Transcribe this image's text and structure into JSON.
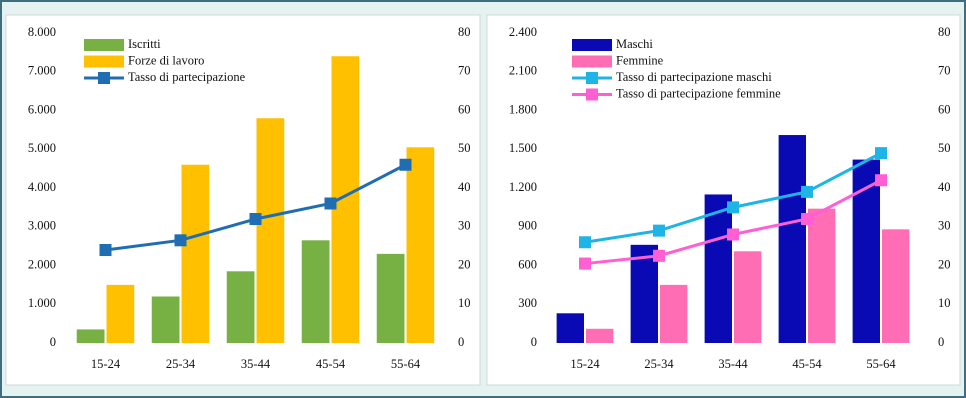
{
  "chart_data": [
    {
      "type": "bar",
      "categories": [
        "15-24",
        "25-34",
        "35-44",
        "45-54",
        "55-64"
      ],
      "ylim": [
        0,
        8000
      ],
      "yticks": [
        0,
        {
          "value": 1000,
          "label": "1.000"
        },
        {
          "value": 2000,
          "label": "2.000"
        },
        {
          "value": 3000,
          "label": "3.000"
        },
        {
          "value": 4000,
          "label": "4.000"
        },
        {
          "value": 5000,
          "label": "5.000"
        },
        {
          "value": 6000,
          "label": "6.000"
        },
        {
          "value": 7000,
          "label": "7.000"
        },
        {
          "value": 8000,
          "label": "8.000"
        }
      ],
      "y2lim": [
        0,
        80
      ],
      "y2ticks": [
        0,
        10,
        20,
        30,
        40,
        50,
        60,
        70,
        80
      ],
      "series": [
        {
          "name": "Iscritti",
          "color": "#77b043",
          "values": [
            350,
            1200,
            1850,
            2650,
            2300
          ]
        },
        {
          "name": "Forze di lavoro",
          "color": "#ffc000",
          "values": [
            1500,
            4600,
            5800,
            7400,
            5050
          ]
        },
        {
          "name": "Tasso di partecipazione",
          "color": "#1f6db3",
          "axis": "y2",
          "values": [
            24,
            26.5,
            32,
            36,
            46
          ]
        }
      ]
    },
    {
      "type": "bar",
      "categories": [
        "15-24",
        "25-34",
        "35-44",
        "45-54",
        "55-64"
      ],
      "ylim": [
        0,
        2400
      ],
      "yticks": [
        0,
        300,
        600,
        900,
        {
          "value": 1200,
          "label": "1.200"
        },
        {
          "value": 1500,
          "label": "1.500"
        },
        {
          "value": 1800,
          "label": "1.800"
        },
        {
          "value": 2100,
          "label": "2.100"
        },
        {
          "value": 2400,
          "label": "2.400"
        }
      ],
      "y2lim": [
        0,
        80
      ],
      "y2ticks": [
        0,
        10,
        20,
        30,
        40,
        50,
        60,
        70,
        80
      ],
      "series": [
        {
          "name": "Maschi",
          "color": "#0a0ab4",
          "values": [
            230,
            760,
            1150,
            1610,
            1420
          ]
        },
        {
          "name": "Femmine",
          "color": "#ff6eb4",
          "values": [
            110,
            450,
            710,
            1040,
            880
          ]
        },
        {
          "name": "Tasso di partecipazione maschi",
          "color": "#1fb4e6",
          "axis": "y2",
          "values": [
            26,
            29,
            35,
            39,
            49
          ]
        },
        {
          "name": "Tasso di partecipazione femmine",
          "color": "#ff5fd2",
          "axis": "y2",
          "values": [
            20.5,
            22.5,
            28,
            32,
            42
          ]
        }
      ]
    }
  ]
}
